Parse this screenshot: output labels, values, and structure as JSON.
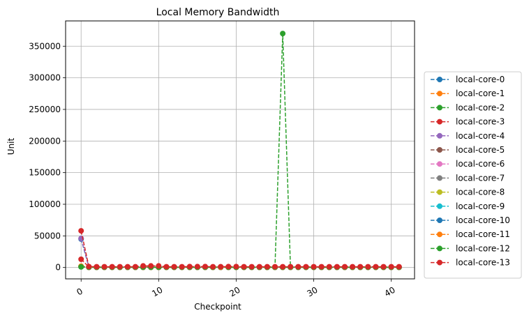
{
  "chart_data": {
    "type": "line",
    "title": "Local Memory Bandwidth",
    "xlabel": "Checkpoint",
    "ylabel": "Unit",
    "xlim": [
      -2,
      43
    ],
    "ylim": [
      -18000,
      390000
    ],
    "xticks": [
      0,
      10,
      20,
      30,
      40
    ],
    "xtick_labels": [
      "0",
      "10",
      "20",
      "30",
      "40"
    ],
    "xtick_rotation": -30,
    "yticks": [
      0,
      50000,
      100000,
      150000,
      200000,
      250000,
      300000,
      350000
    ],
    "ytick_labels": [
      "0",
      "50000",
      "100000",
      "150000",
      "200000",
      "250000",
      "300000",
      "350000"
    ],
    "grid": true,
    "legend_position": "right-outside",
    "line_style": "dashed",
    "marker": "circle",
    "x": [
      0,
      1,
      2,
      3,
      4,
      5,
      6,
      7,
      8,
      9,
      10,
      11,
      12,
      13,
      14,
      15,
      16,
      17,
      18,
      19,
      20,
      21,
      22,
      23,
      24,
      25,
      26,
      27,
      28,
      29,
      30,
      31,
      32,
      33,
      34,
      35,
      36,
      37,
      38,
      39,
      40,
      41
    ],
    "series": [
      {
        "name": "local-core-0",
        "color": "#1f77b4",
        "values": [
          45000,
          800,
          600,
          500,
          500,
          500,
          500,
          500,
          500,
          500,
          500,
          500,
          500,
          500,
          500,
          500,
          500,
          500,
          500,
          500,
          500,
          500,
          500,
          500,
          500,
          500,
          500,
          500,
          500,
          500,
          500,
          500,
          500,
          500,
          500,
          500,
          500,
          500,
          500,
          500,
          500,
          500
        ]
      },
      {
        "name": "local-core-1",
        "color": "#ff7f0e",
        "values": [
          2000,
          300,
          300,
          300,
          300,
          300,
          300,
          300,
          300,
          300,
          300,
          300,
          300,
          300,
          300,
          300,
          300,
          300,
          300,
          300,
          300,
          300,
          300,
          300,
          300,
          300,
          300,
          300,
          300,
          300,
          300,
          300,
          300,
          300,
          300,
          300,
          300,
          300,
          300,
          300,
          300,
          300
        ]
      },
      {
        "name": "local-core-2",
        "color": "#2ca02c",
        "values": [
          1000,
          300,
          300,
          300,
          300,
          300,
          300,
          300,
          300,
          300,
          300,
          300,
          300,
          300,
          300,
          300,
          300,
          300,
          300,
          300,
          300,
          300,
          300,
          300,
          300,
          300,
          370000,
          300,
          300,
          300,
          300,
          300,
          300,
          300,
          300,
          300,
          300,
          300,
          300,
          300,
          300,
          300
        ]
      },
      {
        "name": "local-core-3",
        "color": "#d62728",
        "values": [
          13000,
          800,
          600,
          600,
          600,
          600,
          600,
          600,
          600,
          600,
          600,
          600,
          600,
          600,
          600,
          600,
          600,
          600,
          600,
          600,
          600,
          600,
          600,
          600,
          600,
          600,
          600,
          600,
          600,
          600,
          600,
          600,
          600,
          600,
          600,
          600,
          600,
          600,
          600,
          600,
          600,
          600
        ]
      },
      {
        "name": "local-core-4",
        "color": "#9467bd",
        "values": [
          46000,
          700,
          500,
          500,
          500,
          500,
          500,
          500,
          500,
          500,
          500,
          500,
          500,
          500,
          500,
          500,
          500,
          500,
          500,
          500,
          500,
          500,
          500,
          500,
          500,
          500,
          500,
          500,
          500,
          500,
          500,
          500,
          500,
          500,
          500,
          500,
          500,
          500,
          500,
          500,
          500,
          500
        ]
      },
      {
        "name": "local-core-5",
        "color": "#8c564b",
        "values": [
          1500,
          300,
          300,
          300,
          300,
          300,
          300,
          300,
          300,
          300,
          300,
          300,
          300,
          300,
          300,
          300,
          300,
          300,
          300,
          300,
          300,
          300,
          300,
          300,
          300,
          300,
          300,
          300,
          300,
          300,
          300,
          300,
          300,
          300,
          300,
          300,
          300,
          300,
          300,
          300,
          300,
          300
        ]
      },
      {
        "name": "local-core-6",
        "color": "#e377c2",
        "values": [
          1500,
          300,
          300,
          300,
          300,
          300,
          300,
          300,
          300,
          300,
          300,
          300,
          300,
          300,
          300,
          300,
          300,
          300,
          300,
          300,
          300,
          300,
          300,
          300,
          300,
          300,
          300,
          300,
          300,
          300,
          300,
          300,
          300,
          300,
          300,
          300,
          300,
          300,
          300,
          300,
          300,
          300
        ]
      },
      {
        "name": "local-core-7",
        "color": "#7f7f7f",
        "values": [
          1500,
          300,
          300,
          300,
          300,
          300,
          300,
          300,
          300,
          300,
          300,
          300,
          300,
          300,
          300,
          300,
          300,
          300,
          300,
          300,
          300,
          300,
          300,
          300,
          300,
          300,
          300,
          300,
          300,
          300,
          300,
          300,
          300,
          300,
          300,
          300,
          300,
          300,
          300,
          300,
          300,
          300
        ]
      },
      {
        "name": "local-core-8",
        "color": "#bcbd22",
        "values": [
          1500,
          200,
          200,
          200,
          200,
          200,
          200,
          200,
          200,
          200,
          200,
          200,
          200,
          200,
          200,
          200,
          200,
          200,
          200,
          200,
          200,
          200,
          200,
          200,
          200,
          200,
          200,
          200,
          200,
          200,
          200,
          200,
          200,
          200,
          200,
          200,
          200,
          200,
          200,
          200,
          200,
          200
        ]
      },
      {
        "name": "local-core-9",
        "color": "#17becf",
        "values": [
          1500,
          300,
          300,
          300,
          300,
          300,
          300,
          300,
          300,
          300,
          300,
          300,
          300,
          300,
          300,
          300,
          300,
          300,
          300,
          300,
          300,
          300,
          300,
          300,
          300,
          300,
          300,
          300,
          300,
          300,
          300,
          300,
          300,
          300,
          300,
          300,
          300,
          300,
          300,
          300,
          300,
          300
        ]
      },
      {
        "name": "local-core-10",
        "color": "#1f77b4",
        "values": [
          1500,
          300,
          300,
          300,
          300,
          300,
          300,
          300,
          300,
          300,
          300,
          300,
          300,
          300,
          300,
          300,
          300,
          300,
          300,
          300,
          300,
          300,
          300,
          300,
          300,
          300,
          300,
          300,
          300,
          300,
          300,
          300,
          300,
          300,
          300,
          300,
          300,
          300,
          300,
          300,
          300,
          300
        ]
      },
      {
        "name": "local-core-11",
        "color": "#ff7f0e",
        "values": [
          2000,
          300,
          300,
          300,
          300,
          300,
          300,
          300,
          300,
          300,
          300,
          300,
          300,
          300,
          300,
          300,
          300,
          300,
          300,
          300,
          300,
          300,
          300,
          300,
          300,
          300,
          300,
          300,
          300,
          300,
          300,
          300,
          300,
          300,
          300,
          300,
          300,
          300,
          300,
          300,
          300,
          300
        ]
      },
      {
        "name": "local-core-12",
        "color": "#2ca02c",
        "values": [
          1000,
          500,
          500,
          500,
          500,
          500,
          500,
          500,
          500,
          500,
          500,
          500,
          500,
          500,
          500,
          500,
          500,
          500,
          1000,
          500,
          500,
          500,
          500,
          500,
          500,
          500,
          500,
          500,
          500,
          500,
          500,
          500,
          500,
          500,
          500,
          500,
          500,
          500,
          500,
          500,
          500,
          500
        ]
      },
      {
        "name": "local-core-13",
        "color": "#d62728",
        "values": [
          58000,
          1500,
          1200,
          1200,
          1200,
          1200,
          1200,
          1200,
          2500,
          2500,
          2500,
          1200,
          1200,
          1200,
          1500,
          1500,
          1500,
          1200,
          1200,
          1500,
          1500,
          1200,
          1200,
          1200,
          1200,
          1200,
          1200,
          1200,
          1200,
          1200,
          1200,
          1200,
          1200,
          1200,
          1200,
          1200,
          1200,
          1200,
          1200,
          1200,
          1200,
          1200
        ]
      }
    ]
  }
}
